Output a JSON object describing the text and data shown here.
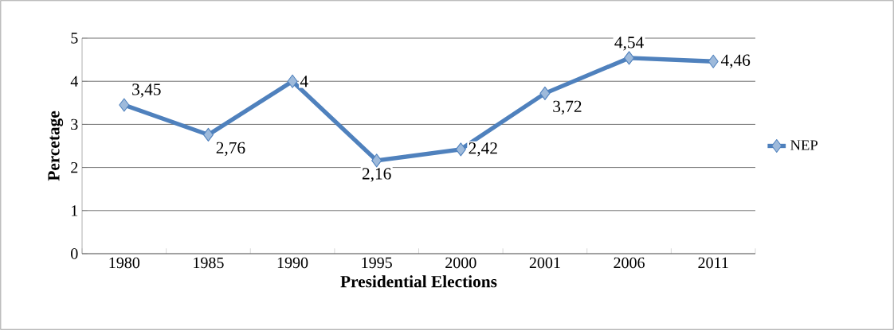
{
  "chart_data": {
    "type": "line",
    "xlabel": "Presidential Elections",
    "ylabel": "Percetage",
    "categories": [
      "1980",
      "1985",
      "1990",
      "1995",
      "2000",
      "2001",
      "2006",
      "2011"
    ],
    "series": [
      {
        "name": "NEP",
        "color": "#4f81bd",
        "values": [
          3.45,
          2.76,
          4,
          2.16,
          2.42,
          3.72,
          4.54,
          4.46
        ],
        "value_labels": [
          "3,45",
          "2,76",
          "4",
          "2,16",
          "2,42",
          "3,72",
          "4,54",
          "4,46"
        ]
      }
    ],
    "ylim": [
      0,
      5
    ],
    "yticks": [
      0,
      1,
      2,
      3,
      4,
      5
    ],
    "grid": "y",
    "legend": "right",
    "marker": "diamond"
  }
}
